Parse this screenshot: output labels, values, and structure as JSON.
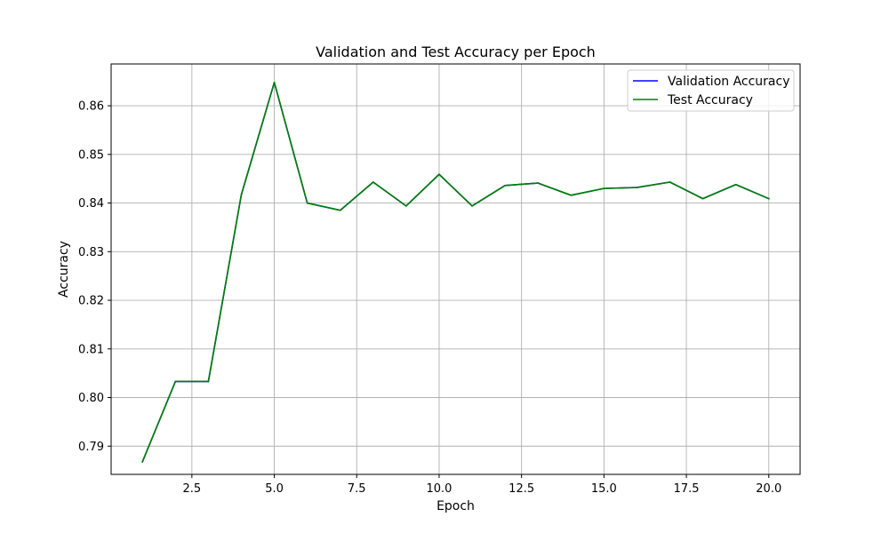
{
  "chart_data": {
    "type": "line",
    "title": "Validation and Test Accuracy per Epoch",
    "xlabel": "Epoch",
    "ylabel": "Accuracy",
    "xlim": [
      0.05,
      20.95
    ],
    "ylim": [
      0.7842,
      0.8686
    ],
    "xticks": [
      "2.5",
      "5.0",
      "7.5",
      "10.0",
      "12.5",
      "15.0",
      "17.5",
      "20.0"
    ],
    "yticks": [
      "0.79",
      "0.80",
      "0.81",
      "0.82",
      "0.83",
      "0.84",
      "0.85",
      "0.86"
    ],
    "grid": true,
    "legend_position": "top-right",
    "x": [
      1,
      2,
      3,
      4,
      5,
      6,
      7,
      8,
      9,
      10,
      11,
      12,
      13,
      14,
      15,
      16,
      17,
      18,
      19,
      20
    ],
    "series": [
      {
        "name": "Validation Accuracy",
        "color": "#0000ff",
        "values": [
          0.7868,
          0.8033,
          0.8033,
          0.8417,
          0.8648,
          0.84,
          0.8385,
          0.8443,
          0.8394,
          0.8459,
          0.8394,
          0.8436,
          0.8441,
          0.8416,
          0.843,
          0.8432,
          0.8443,
          0.8409,
          0.8438,
          0.8409
        ]
      },
      {
        "name": "Test Accuracy",
        "color": "#008000",
        "values": [
          0.7868,
          0.8033,
          0.8033,
          0.8417,
          0.8648,
          0.84,
          0.8385,
          0.8443,
          0.8394,
          0.8459,
          0.8394,
          0.8436,
          0.8441,
          0.8416,
          0.843,
          0.8432,
          0.8443,
          0.8409,
          0.8438,
          0.8409
        ]
      }
    ]
  }
}
